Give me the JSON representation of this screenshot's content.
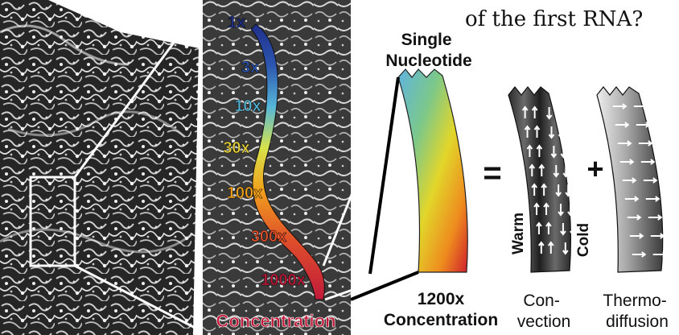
{
  "header_fragment": "of the first RNA?",
  "concentration_marks": [
    "1x",
    "3x",
    "10x",
    "30x",
    "100x",
    "300x",
    "1000x"
  ],
  "mark_colors": [
    "#1f2f8a",
    "#2c56b0",
    "#56b7d8",
    "#e7d23a",
    "#f0a21c",
    "#e0502a",
    "#c01a3a"
  ],
  "concentration_label": "Concentration",
  "single_nucleotide": [
    "Single",
    "Nucleotide"
  ],
  "result": {
    "value": "1200x",
    "label": "Concentration"
  },
  "equals_symbol": "=",
  "plus_symbol": "+",
  "convection": {
    "warm": "Warm",
    "cold": "Cold",
    "caption": [
      "Con-",
      "vection"
    ]
  },
  "thermodiffusion": {
    "caption": [
      "Thermo-",
      "diffusion"
    ]
  }
}
